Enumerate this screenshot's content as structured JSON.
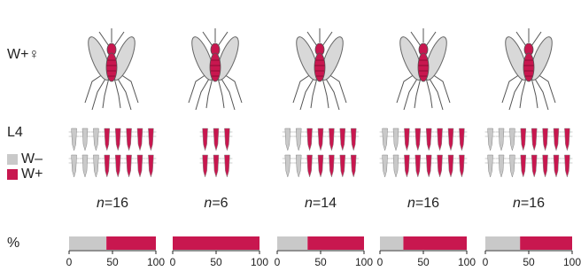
{
  "chart_data": {
    "type": "bar",
    "row_labels": [
      "W+♀",
      "L4",
      "%"
    ],
    "categories": [
      null,
      null,
      null,
      null,
      null
    ],
    "series": [
      {
        "name": "W–",
        "color": "#c9c9c9",
        "values": [
          43,
          0,
          35,
          27,
          40
        ],
        "larvae": [
          6,
          0,
          4,
          4,
          6
        ]
      },
      {
        "name": "W+",
        "color": "#c8174f",
        "values": [
          57,
          100,
          65,
          73,
          60
        ],
        "larvae": [
          10,
          6,
          10,
          12,
          10
        ]
      }
    ],
    "n_symbol": "n",
    "n": [
      16,
      6,
      14,
      16,
      16
    ],
    "n_labels": [
      "=16",
      "=6",
      "=14",
      "=16",
      "=16"
    ],
    "xlim": [
      0,
      100
    ],
    "xticks": [
      0,
      50,
      100
    ]
  }
}
